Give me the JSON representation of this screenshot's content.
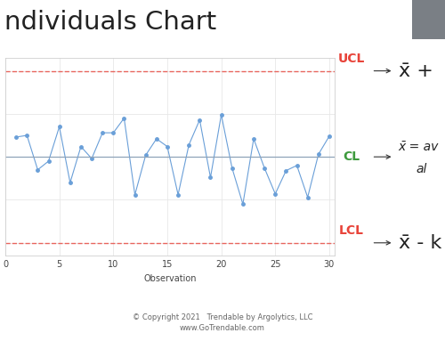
{
  "chart_data": {
    "type": "line",
    "title": "ndividuals Chart",
    "x_label": "Observation",
    "x": [
      1,
      2,
      3,
      4,
      5,
      6,
      7,
      8,
      9,
      10,
      11,
      12,
      13,
      14,
      15,
      16,
      17,
      18,
      19,
      20,
      21,
      22,
      23,
      24,
      25,
      26,
      27,
      28,
      29,
      30
    ],
    "values": [
      0.46,
      0.5,
      -0.3,
      -0.1,
      0.7,
      -0.6,
      0.24,
      -0.04,
      0.56,
      0.56,
      0.9,
      -0.88,
      0.04,
      0.42,
      0.24,
      -0.88,
      0.28,
      0.86,
      -0.48,
      0.98,
      -0.26,
      -1.1,
      0.42,
      -0.26,
      -0.86,
      -0.32,
      -0.2,
      -0.94,
      0.06,
      0.48
    ],
    "color": "#6a9fd8",
    "marker": "o",
    "xlim": [
      0,
      30.5
    ],
    "xticks": [
      0,
      5,
      10,
      15,
      20,
      25,
      30
    ],
    "ylim": [
      -2.3,
      2.3
    ],
    "yticks": [
      -2,
      -1,
      0,
      1,
      2
    ],
    "grid": true,
    "tick_labels": "x",
    "control_limits": [
      {
        "name": "UCL",
        "value": 2,
        "color": "#e8443a",
        "line_style": "dashed",
        "formula": [
          "x̄ + "
        ]
      },
      {
        "name": "CL",
        "value": 0,
        "color": "#3d9a3d",
        "line_style": "solid",
        "formula": [
          "x̄ = av",
          "al"
        ]
      },
      {
        "name": "LCL",
        "value": -2,
        "color": "#e8443a",
        "line_style": "dashed",
        "formula": [
          "x̄ - k"
        ]
      }
    ]
  },
  "footer": [
    "© Copyright 2021   Trendable by Argolytics, LLC",
    "www.GoTrendable.com"
  ]
}
